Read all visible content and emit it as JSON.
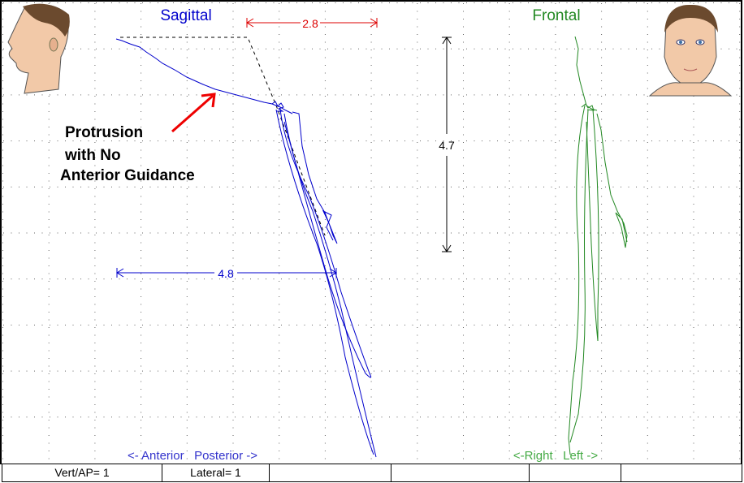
{
  "sagittal": {
    "title": "Sagittal",
    "measure_h": "2.8",
    "measure_h2": "4.8",
    "axis_label": "<- Anterior   Posterior ->",
    "color": "#0000cc"
  },
  "frontal": {
    "title": "Frontal",
    "axis_label": "<-Right   Left ->",
    "color": "#228822"
  },
  "vertical_measure": "4.7",
  "annotation": {
    "line1": "Protrusion",
    "line2": "with No",
    "line3": "Anterior Guidance"
  },
  "status_bar": {
    "cells": [
      "Vert/AP= 1",
      "Lateral= 1",
      "",
      "",
      "",
      ""
    ]
  }
}
